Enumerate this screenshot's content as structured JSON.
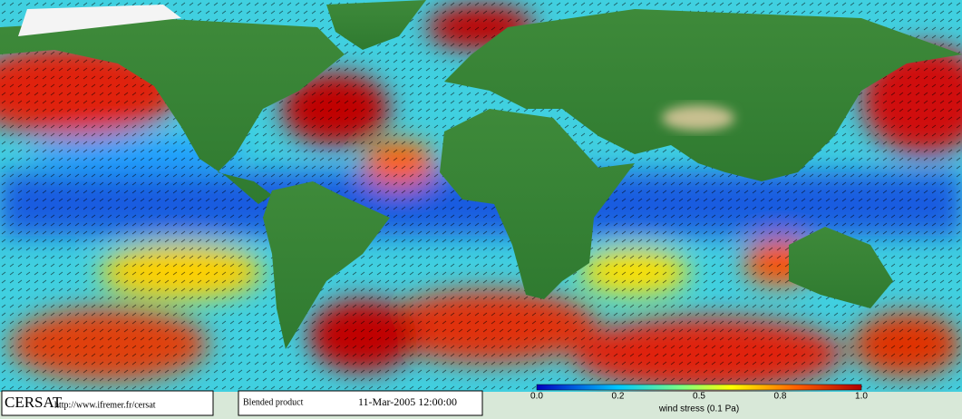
{
  "footer": {
    "logo": "CERSAT",
    "url": "http://www.ifremer.fr/cersat",
    "product": "Blended product",
    "date": "11-Mar-2005 12:00:00"
  },
  "colorbar": {
    "label": "wind stress (0.1 Pa)",
    "ticks": [
      "0.0",
      "0.2",
      "0.5",
      "0.8",
      "1.0"
    ]
  }
}
